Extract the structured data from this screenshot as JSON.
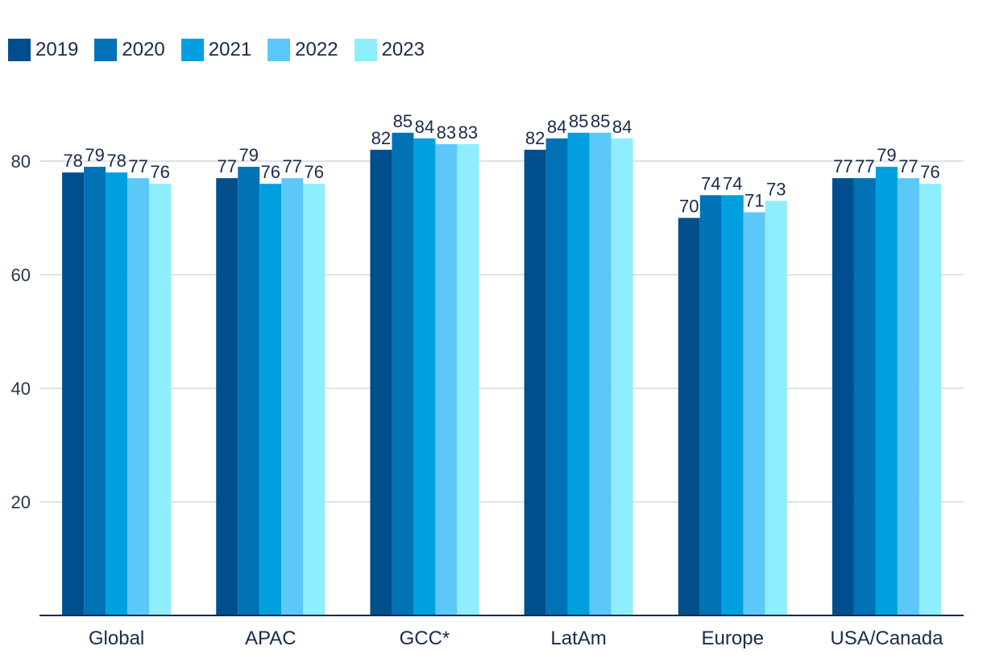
{
  "chart_data": {
    "type": "bar",
    "title": "",
    "xlabel": "",
    "ylabel": "",
    "ylim": [
      0,
      90
    ],
    "yticks": [
      20,
      40,
      60,
      80
    ],
    "grid": true,
    "legend_position": "top-left",
    "categories": [
      "Global",
      "APAC",
      "GCC*",
      "LatAm",
      "Europe",
      "USA/Canada"
    ],
    "series": [
      {
        "name": "2019",
        "color": "#004f8c",
        "values": [
          78,
          77,
          82,
          82,
          70,
          77
        ]
      },
      {
        "name": "2020",
        "color": "#0072b5",
        "values": [
          79,
          79,
          85,
          84,
          74,
          77
        ]
      },
      {
        "name": "2021",
        "color": "#00a0e0",
        "values": [
          78,
          76,
          84,
          85,
          74,
          79
        ]
      },
      {
        "name": "2022",
        "color": "#5cc8fa",
        "values": [
          77,
          77,
          83,
          85,
          71,
          77
        ]
      },
      {
        "name": "2023",
        "color": "#8eeefc",
        "values": [
          76,
          76,
          83,
          84,
          73,
          76
        ]
      }
    ]
  }
}
